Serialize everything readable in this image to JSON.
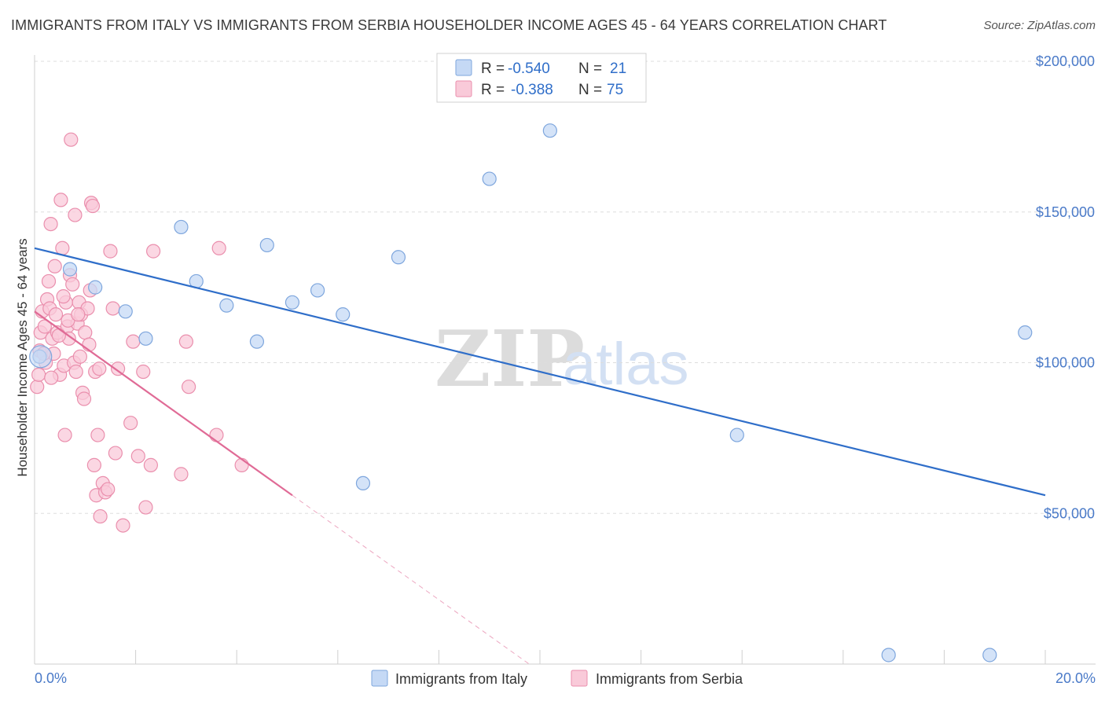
{
  "title": "IMMIGRANTS FROM ITALY VS IMMIGRANTS FROM SERBIA HOUSEHOLDER INCOME AGES 45 - 64 YEARS CORRELATION CHART",
  "source": "Source: ZipAtlas.com",
  "watermark": {
    "zip": "ZIP",
    "atlas": "atlas"
  },
  "legend": {
    "italy": {
      "r_label": "R = ",
      "r_value": "-0.540",
      "n_label": "N = ",
      "n_value": "21"
    },
    "serbia": {
      "r_label": "R = ",
      "r_value": "-0.388",
      "n_label": "N = ",
      "n_value": "75"
    }
  },
  "colors": {
    "italy_fill": "#c5d9f5",
    "italy_stroke": "#7ea6dd",
    "italy_line": "#2f6ec9",
    "serbia_fill": "#f9cad9",
    "serbia_stroke": "#ea8fad",
    "serbia_line": "#e06b96",
    "grid": "#dddddd",
    "tick_text": "#4a7ac8"
  },
  "chart_data": {
    "type": "scatter",
    "title": "IMMIGRANTS FROM ITALY VS IMMIGRANTS FROM SERBIA HOUSEHOLDER INCOME AGES 45 - 64 YEARS CORRELATION CHART",
    "xlabel": "",
    "ylabel": "Householder Income Ages 45 - 64 years",
    "xlim": [
      0,
      20
    ],
    "ylim": [
      0,
      205000
    ],
    "x_tick_labels": [
      "0.0%",
      "20.0%"
    ],
    "y_ticks": [
      50000,
      100000,
      150000,
      200000
    ],
    "y_tick_labels": [
      "$50,000",
      "$100,000",
      "$150,000",
      "$200,000"
    ],
    "grid": true,
    "legend_position": "top-center",
    "series": [
      {
        "name": "Immigrants from Italy",
        "points": [
          [
            0.1,
            102000
          ],
          [
            0.7,
            131000
          ],
          [
            1.2,
            125000
          ],
          [
            1.8,
            117000
          ],
          [
            2.2,
            108000
          ],
          [
            2.9,
            145000
          ],
          [
            3.2,
            127000
          ],
          [
            3.8,
            119000
          ],
          [
            4.4,
            107000
          ],
          [
            4.6,
            139000
          ],
          [
            5.1,
            120000
          ],
          [
            5.6,
            124000
          ],
          [
            6.1,
            116000
          ],
          [
            6.5,
            60000
          ],
          [
            7.2,
            135000
          ],
          [
            9.0,
            161000
          ],
          [
            10.2,
            177000
          ],
          [
            13.9,
            76000
          ],
          [
            16.9,
            3000
          ],
          [
            18.9,
            3000
          ],
          [
            19.6,
            110000
          ]
        ],
        "trend": {
          "x": [
            0,
            20
          ],
          "y": [
            138000,
            56000
          ]
        }
      },
      {
        "name": "Immigrants from Serbia",
        "points": [
          [
            0.05,
            92000
          ],
          [
            0.08,
            96000
          ],
          [
            0.1,
            104000
          ],
          [
            0.12,
            110000
          ],
          [
            0.15,
            117000
          ],
          [
            0.2,
            112000
          ],
          [
            0.22,
            100000
          ],
          [
            0.25,
            121000
          ],
          [
            0.28,
            127000
          ],
          [
            0.3,
            118000
          ],
          [
            0.32,
            146000
          ],
          [
            0.35,
            108000
          ],
          [
            0.38,
            103000
          ],
          [
            0.4,
            132000
          ],
          [
            0.42,
            116000
          ],
          [
            0.45,
            110000
          ],
          [
            0.5,
            96000
          ],
          [
            0.52,
            154000
          ],
          [
            0.55,
            138000
          ],
          [
            0.58,
            99000
          ],
          [
            0.6,
            76000
          ],
          [
            0.62,
            120000
          ],
          [
            0.65,
            112000
          ],
          [
            0.68,
            108000
          ],
          [
            0.7,
            129000
          ],
          [
            0.72,
            174000
          ],
          [
            0.75,
            126000
          ],
          [
            0.78,
            100000
          ],
          [
            0.8,
            149000
          ],
          [
            0.82,
            97000
          ],
          [
            0.85,
            113000
          ],
          [
            0.88,
            120000
          ],
          [
            0.9,
            102000
          ],
          [
            0.92,
            116000
          ],
          [
            0.95,
            90000
          ],
          [
            0.98,
            88000
          ],
          [
            1.0,
            110000
          ],
          [
            1.05,
            118000
          ],
          [
            1.1,
            124000
          ],
          [
            1.12,
            153000
          ],
          [
            1.15,
            152000
          ],
          [
            1.18,
            66000
          ],
          [
            1.2,
            97000
          ],
          [
            1.22,
            56000
          ],
          [
            1.25,
            76000
          ],
          [
            1.28,
            98000
          ],
          [
            1.3,
            49000
          ],
          [
            1.35,
            60000
          ],
          [
            1.4,
            57000
          ],
          [
            1.45,
            58000
          ],
          [
            1.5,
            137000
          ],
          [
            1.55,
            118000
          ],
          [
            1.6,
            70000
          ],
          [
            1.65,
            98000
          ],
          [
            1.75,
            46000
          ],
          [
            1.9,
            80000
          ],
          [
            1.95,
            107000
          ],
          [
            2.05,
            69000
          ],
          [
            2.15,
            97000
          ],
          [
            2.2,
            52000
          ],
          [
            2.3,
            66000
          ],
          [
            2.35,
            137000
          ],
          [
            2.9,
            63000
          ],
          [
            3.0,
            107000
          ],
          [
            3.05,
            92000
          ],
          [
            3.6,
            76000
          ],
          [
            3.65,
            138000
          ],
          [
            4.1,
            66000
          ],
          [
            0.18,
            103000
          ],
          [
            0.48,
            109000
          ],
          [
            0.66,
            114000
          ],
          [
            0.86,
            116000
          ],
          [
            1.08,
            106000
          ],
          [
            0.33,
            95000
          ],
          [
            0.57,
            122000
          ]
        ],
        "trend": {
          "x": [
            0,
            5.1
          ],
          "y": [
            117000,
            56000
          ]
        },
        "trend_extension": {
          "x": [
            5.1,
            20
          ],
          "y": [
            56000,
            -122000
          ]
        }
      }
    ]
  },
  "bottom_legend": {
    "italy": "Immigrants from Italy",
    "serbia": "Immigrants from Serbia"
  }
}
